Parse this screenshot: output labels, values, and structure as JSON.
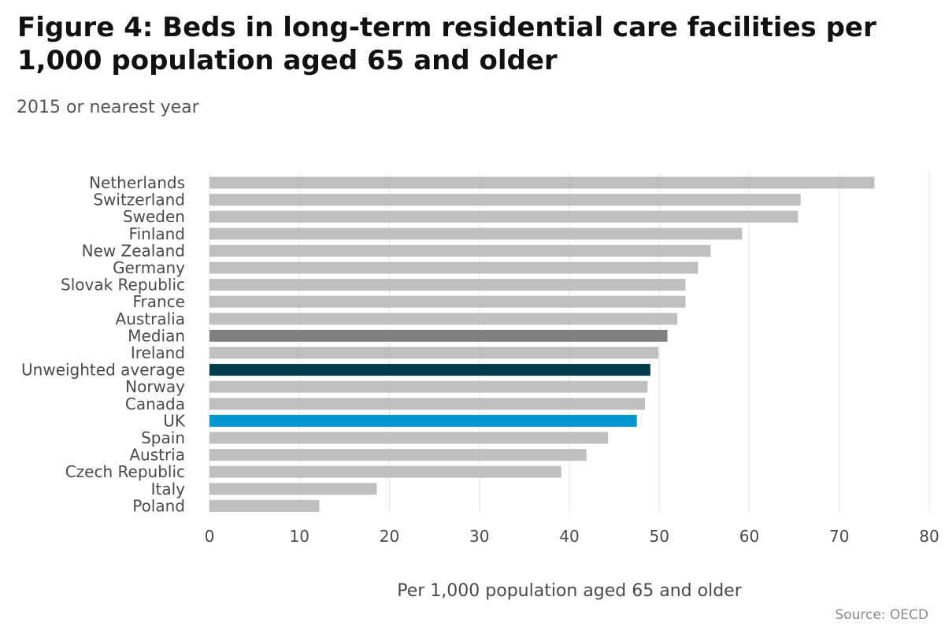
{
  "title": "Figure 4: Beds in long-term residential care facilities per 1,000 population aged 65 and older",
  "subtitle": "2015 or nearest year",
  "source": "Source: OECD",
  "colors": {
    "default_bar": "#bfbfbf",
    "median_bar": "#7f7f7f",
    "average_bar": "#003a4d",
    "uk_bar": "#0096d1",
    "gridline": "#e6e6e6"
  },
  "chart_data": {
    "type": "bar",
    "orientation": "horizontal",
    "categories": [
      "Netherlands",
      "Switzerland",
      "Sweden",
      "Finland",
      "New Zealand",
      "Germany",
      "Slovak Republic",
      "France",
      "Australia",
      "Median",
      "Ireland",
      "Unweighted average",
      "Norway",
      "Canada",
      "UK",
      "Spain",
      "Austria",
      "Czech Republic",
      "Italy",
      "Poland"
    ],
    "values": [
      73.9,
      65.7,
      65.4,
      59.2,
      55.7,
      54.3,
      52.9,
      52.9,
      52.0,
      50.9,
      49.9,
      49.0,
      48.7,
      48.4,
      47.5,
      44.3,
      41.9,
      39.1,
      18.6,
      12.2
    ],
    "highlight": {
      "Median": "median_bar",
      "Unweighted average": "average_bar",
      "UK": "uk_bar"
    },
    "xlabel": "Per 1,000 population aged 65 and older",
    "xlim": [
      0,
      80
    ],
    "xticks": [
      0,
      10,
      20,
      30,
      40,
      50,
      60,
      70,
      80
    ],
    "grid": "vertical"
  }
}
